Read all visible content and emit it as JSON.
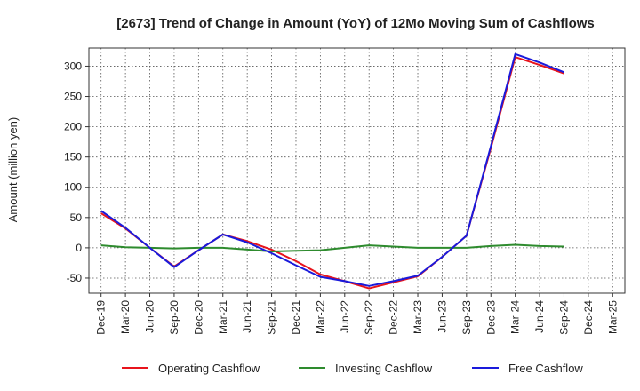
{
  "chart_data": {
    "type": "line",
    "title": "[2673]  Trend of Change in Amount (YoY) of 12Mo Moving Sum of Cashflows",
    "xlabel": "",
    "ylabel": "Amount (million yen)",
    "categories": [
      "Dec-19",
      "Mar-20",
      "Jun-20",
      "Sep-20",
      "Dec-20",
      "Mar-21",
      "Jun-21",
      "Sep-21",
      "Dec-21",
      "Mar-22",
      "Jun-22",
      "Sep-22",
      "Dec-22",
      "Mar-23",
      "Jun-23",
      "Sep-23",
      "Dec-23",
      "Mar-24",
      "Jun-24",
      "Sep-24",
      "Dec-24",
      "Mar-25"
    ],
    "ylim": [
      -75,
      330
    ],
    "yticks": [
      -50,
      0,
      50,
      100,
      150,
      200,
      250,
      300
    ],
    "grid": true,
    "legend_position": "bottom",
    "series": [
      {
        "name": "Operating Cashflow",
        "color": "#e8141c",
        "values": [
          57,
          32,
          0,
          -31,
          -4,
          22,
          11,
          -3,
          -22,
          -44,
          -55,
          -67,
          -57,
          -47,
          -15,
          20,
          165,
          315,
          302,
          288,
          null,
          null
        ]
      },
      {
        "name": "Investing Cashflow",
        "color": "#2e8b2e",
        "values": [
          4,
          1,
          0,
          -1,
          0,
          0,
          -3,
          -6,
          -5,
          -4,
          0,
          4,
          2,
          0,
          0,
          0,
          3,
          5,
          3,
          2,
          null,
          null
        ]
      },
      {
        "name": "Free Cashflow",
        "color": "#1a1adb",
        "values": [
          61,
          33,
          0,
          -32,
          -4,
          22,
          9,
          -9,
          -29,
          -48,
          -55,
          -63,
          -55,
          -46,
          -15,
          20,
          168,
          320,
          306,
          290,
          null,
          null
        ]
      }
    ]
  }
}
